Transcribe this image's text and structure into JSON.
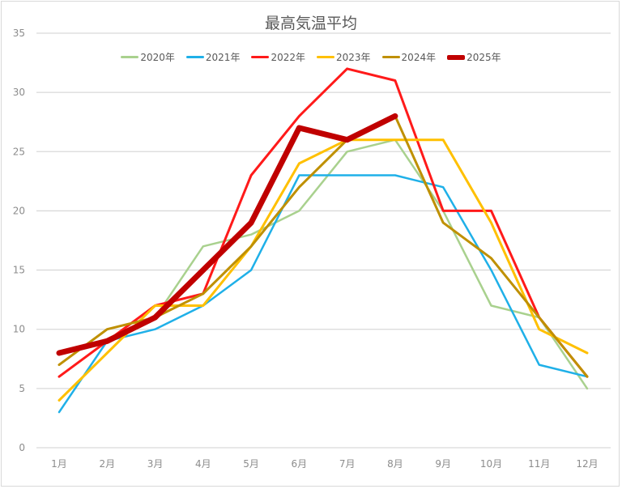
{
  "chart_data": {
    "type": "line",
    "title": "最高気温平均",
    "xlabel": "",
    "ylabel": "",
    "ylim": [
      0,
      35
    ],
    "yticks": [
      0,
      5,
      10,
      15,
      20,
      25,
      30,
      35
    ],
    "grid": true,
    "legend_position": "top",
    "categories": [
      "1月",
      "2月",
      "3月",
      "4月",
      "5月",
      "6月",
      "7月",
      "8月",
      "9月",
      "10月",
      "11月",
      "12月"
    ],
    "series": [
      {
        "name": "2020年",
        "color": "#a9d18e",
        "width": 2.5,
        "values": [
          8,
          9,
          11,
          17,
          18,
          20,
          25,
          26,
          20,
          12,
          11,
          5
        ]
      },
      {
        "name": "2021年",
        "color": "#1fb0e8",
        "width": 2.5,
        "values": [
          3,
          9,
          10,
          12,
          15,
          23,
          23,
          23,
          22,
          15,
          7,
          6
        ]
      },
      {
        "name": "2022年",
        "color": "#ff1a1a",
        "width": 3,
        "values": [
          6,
          9,
          12,
          13,
          23,
          28,
          32,
          31,
          20,
          20,
          11,
          6
        ]
      },
      {
        "name": "2023年",
        "color": "#ffc000",
        "width": 3,
        "values": [
          4,
          8,
          12,
          12,
          17,
          24,
          26,
          26,
          26,
          19,
          10,
          8
        ]
      },
      {
        "name": "2024年",
        "color": "#bf9000",
        "width": 3,
        "values": [
          7,
          10,
          11,
          13,
          17,
          22,
          26,
          28,
          19,
          16,
          11,
          6
        ]
      },
      {
        "name": "2025年",
        "color": "#c00000",
        "width": 7,
        "values": [
          8,
          9,
          11,
          15,
          19,
          27,
          26,
          28,
          null,
          null,
          null,
          null
        ]
      }
    ]
  }
}
